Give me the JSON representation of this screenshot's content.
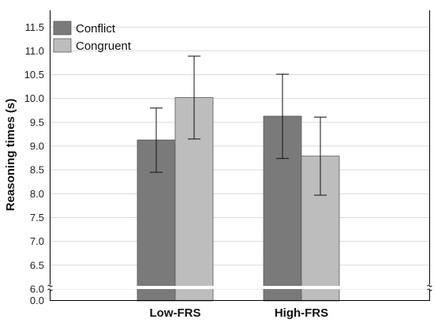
{
  "chart_data": {
    "type": "bar",
    "categories": [
      "Low-FRS",
      "High-FRS"
    ],
    "series": [
      {
        "name": "Conflict",
        "values": [
          9.13,
          9.63
        ],
        "error_low": [
          8.45,
          8.74
        ],
        "error_high": [
          9.8,
          10.51
        ],
        "color": "#7a7a7a"
      },
      {
        "name": "Congruent",
        "values": [
          10.02,
          8.79
        ],
        "error_low": [
          9.15,
          7.97
        ],
        "error_high": [
          10.89,
          9.61
        ],
        "color": "#bdbdbd"
      }
    ],
    "xlabel": "",
    "ylabel": "Reasoning times (s)",
    "ylim": [
      5.75,
      11.5
    ],
    "y_ticks": [
      "11.5",
      "11.0",
      "10.5",
      "10.0",
      "9.5",
      "9.0",
      "8.5",
      "8.0",
      "7.5",
      "7.0",
      "6.5",
      "6.0"
    ],
    "y_break": {
      "lower_tick": "0.0",
      "range": [
        0.0,
        5.75
      ]
    },
    "grid": true,
    "legend": "top-left"
  }
}
